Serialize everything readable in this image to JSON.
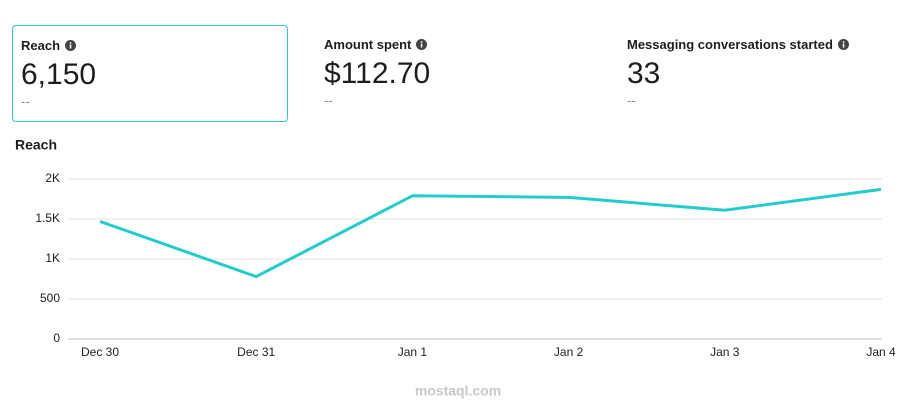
{
  "metrics": [
    {
      "label": "Reach",
      "value": "6,150",
      "change": "--"
    },
    {
      "label": "Amount spent",
      "value": "$112.70",
      "change": "--"
    },
    {
      "label": "Messaging conversations started",
      "value": "33",
      "change": "--"
    }
  ],
  "chart_data": {
    "type": "line",
    "title": "Reach",
    "categories": [
      "Dec 30",
      "Dec 31",
      "Jan 1",
      "Jan 2",
      "Jan 3",
      "Jan 4"
    ],
    "values": [
      1470,
      780,
      1790,
      1770,
      1610,
      1870
    ],
    "color": "#22cccc",
    "ylim": [
      0,
      2000
    ],
    "yticks": [
      0,
      500,
      {
        "value": 1000,
        "label": "1K"
      },
      {
        "value": 1500,
        "label": "1.5K"
      },
      {
        "value": 2000,
        "label": "2K"
      }
    ],
    "grid": true
  },
  "watermark": "mostaql.com"
}
